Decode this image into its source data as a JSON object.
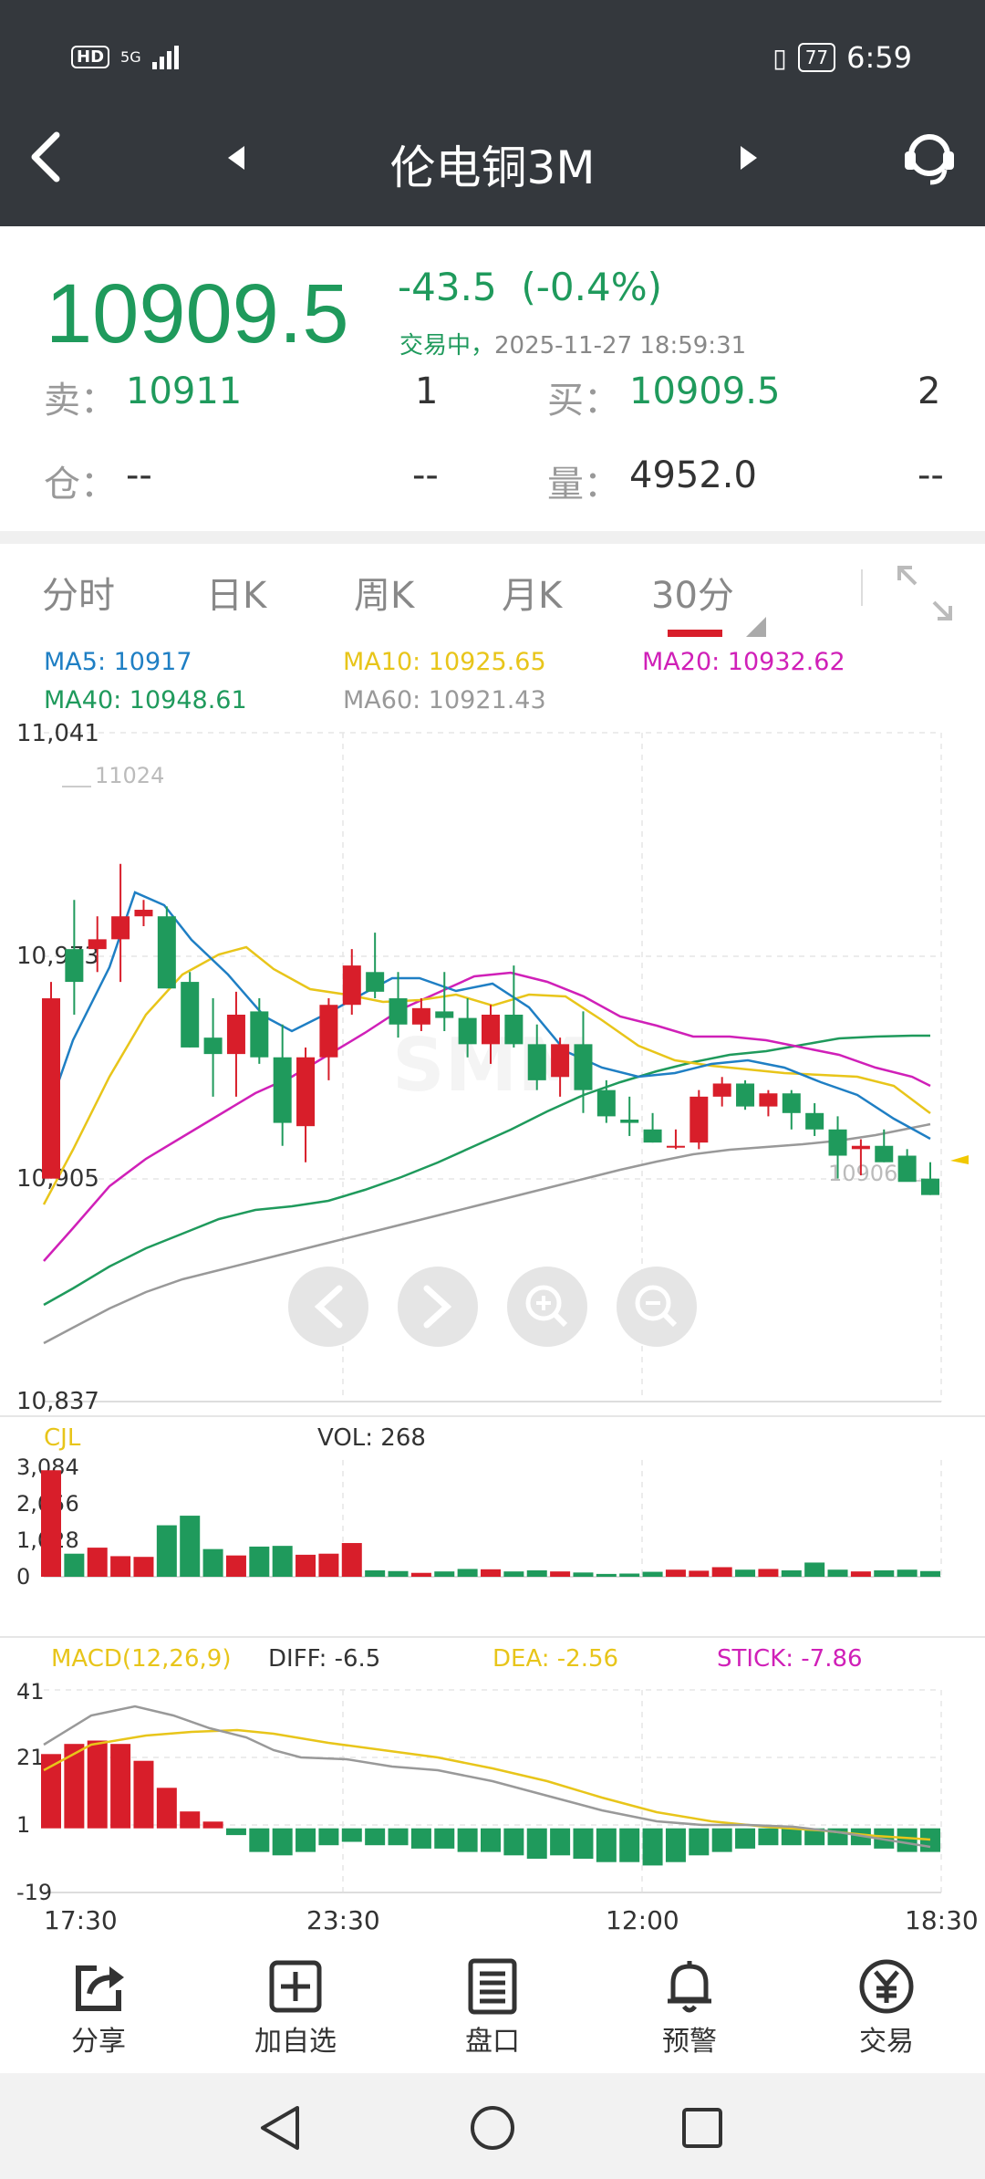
{
  "status": {
    "hd": "HD",
    "net": "5G",
    "battery": "77",
    "time": "6:59"
  },
  "header": {
    "title": "伦电铜3M"
  },
  "quote": {
    "price": "10909.5",
    "change": "-43.5",
    "change_pct": "(-0.4%)",
    "state": "交易中，",
    "timestamp": "2025-11-27 18:59:31",
    "sell_label": "卖：",
    "sell_price": "10911",
    "sell_qty": "1",
    "buy_label": "买：",
    "buy_price": "10909.5",
    "buy_qty": "2",
    "pos_label": "仓：",
    "pos_value": "--",
    "pos_change": "--",
    "vol_label": "量：",
    "vol_value": "4952.0",
    "vol_change": "--"
  },
  "tabs": [
    {
      "label": "分时"
    },
    {
      "label": "日K"
    },
    {
      "label": "周K"
    },
    {
      "label": "月K"
    },
    {
      "label": "30分"
    }
  ],
  "ma": {
    "ma5": "MA5: 10917",
    "ma10": "MA10: 10925.65",
    "ma20": "MA20: 10932.62",
    "ma40": "MA40: 10948.61",
    "ma60": "MA60: 10921.43",
    "colors": {
      "ma5": "#1f7fc4",
      "ma10": "#e8c51a",
      "ma20": "#d020b8",
      "ma40": "#1f9a5c",
      "ma60": "#999999"
    }
  },
  "chart": {
    "y_ticks": [
      "11,041",
      "10,973",
      "10,905",
      "10,837"
    ],
    "high_mark": "11024",
    "low_mark": "10906",
    "vol_label": "CJL",
    "vol_value": "VOL: 268",
    "vol_ticks": [
      "3,084",
      "2,056",
      "1,028",
      "0"
    ],
    "macd_label": "MACD(12,26,9)",
    "diff": "DIFF: -6.5",
    "dea": "DEA: -2.56",
    "stick": "STICK: -7.86",
    "macd_ticks": [
      "41",
      "21",
      "1",
      "-19"
    ],
    "x_ticks": [
      "17:30",
      "23:30",
      "12:00",
      "18:30"
    ]
  },
  "toolbar": [
    {
      "label": "分享",
      "icon": "share-icon"
    },
    {
      "label": "加自选",
      "icon": "add-watchlist-icon"
    },
    {
      "label": "盘口",
      "icon": "orderbook-icon"
    },
    {
      "label": "预警",
      "icon": "bell-icon"
    },
    {
      "label": "交易",
      "icon": "yen-icon"
    }
  ],
  "chart_data": {
    "type": "candlestick",
    "candles_ohlc": [
      [
        10905,
        10965,
        10905,
        10960
      ],
      [
        10975,
        10990,
        10955,
        10965
      ],
      [
        10975,
        10985,
        10968,
        10978
      ],
      [
        10978,
        11001,
        10965,
        10985
      ],
      [
        10985,
        10990,
        10982,
        10987
      ],
      [
        10985,
        10988,
        10963,
        10963
      ],
      [
        10965,
        10968,
        10945,
        10945
      ],
      [
        10948,
        10960,
        10930,
        10943
      ],
      [
        10943,
        10962,
        10930,
        10955
      ],
      [
        10956,
        10960,
        10940,
        10942
      ],
      [
        10942,
        10952,
        10915,
        10922
      ],
      [
        10921,
        10945,
        10910,
        10942
      ],
      [
        10942,
        10960,
        10935,
        10958
      ],
      [
        10958,
        10975,
        10955,
        10970
      ],
      [
        10968,
        10980,
        10960,
        10962
      ],
      [
        10960,
        10968,
        10948,
        10952
      ],
      [
        10952,
        10960,
        10950,
        10957
      ],
      [
        10956,
        10968,
        10950,
        10954
      ],
      [
        10954,
        10960,
        10942,
        10946
      ],
      [
        10946,
        10958,
        10940,
        10955
      ],
      [
        10955,
        10970,
        10945,
        10946
      ],
      [
        10946,
        10952,
        10932,
        10935
      ],
      [
        10936,
        10948,
        10930,
        10946
      ],
      [
        10946,
        10956,
        10925,
        10932
      ],
      [
        10932,
        10935,
        10922,
        10924
      ],
      [
        10923,
        10930,
        10918,
        10922
      ],
      [
        10920,
        10925,
        10916,
        10916
      ],
      [
        10915,
        10920,
        10914,
        10915
      ],
      [
        10916,
        10932,
        10914,
        10930
      ],
      [
        10930,
        10936,
        10927,
        10934
      ],
      [
        10934,
        10935,
        10926,
        10927
      ],
      [
        10927,
        10932,
        10924,
        10931
      ],
      [
        10931,
        10932,
        10920,
        10925
      ],
      [
        10925,
        10928,
        10918,
        10920
      ],
      [
        10920,
        10924,
        10905,
        10912
      ],
      [
        10914,
        10917,
        10906,
        10915
      ],
      [
        10915,
        10920,
        10910,
        10910
      ],
      [
        10912,
        10914,
        10905,
        10904
      ],
      [
        10905,
        10910,
        10900,
        10900
      ]
    ],
    "volume_max": 3084,
    "macd_range": [
      -19,
      41
    ]
  }
}
